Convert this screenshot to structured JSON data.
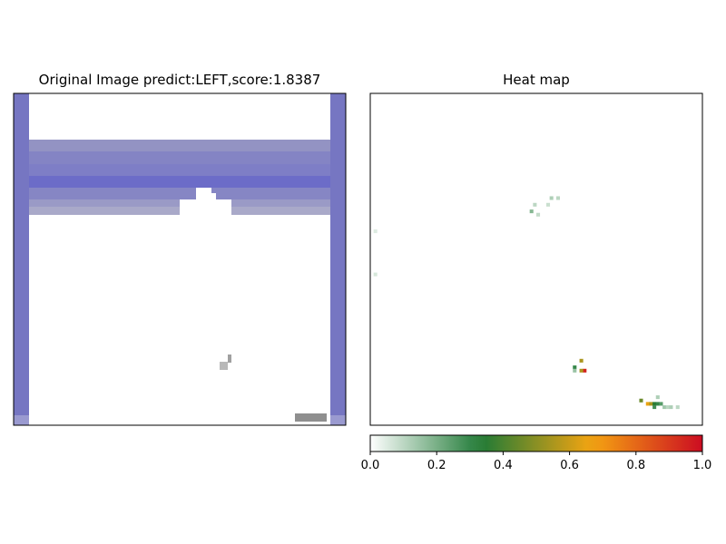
{
  "chart_data": [
    {
      "type": "image",
      "title": "Original Image predict:LEFT,score:1.8387",
      "scene": {
        "game": "Breakout",
        "wall_color": "#7676c2",
        "brick_rows": [
          {
            "color": "#9393c3"
          },
          {
            "color": "#8484c4"
          },
          {
            "color": "#7e7ec6"
          },
          {
            "color": "#6c6cc8"
          },
          {
            "color": "#8686c4"
          },
          {
            "color": "#9a9ac6"
          },
          {
            "color": "#a9a9c9"
          }
        ],
        "ball_color": "#b8b8b8",
        "paddle_color": "#8f8f8f"
      }
    },
    {
      "type": "heatmap",
      "title": "Heat map",
      "colorbar": {
        "min": 0.0,
        "max": 1.0,
        "ticks": [
          0.0,
          0.2,
          0.4,
          0.6,
          0.8,
          1.0
        ],
        "tick_labels": [
          "0.0",
          "0.2",
          "0.4",
          "0.6",
          "0.8",
          "1.0"
        ],
        "colors": [
          "#ffffff",
          "#1f7a36",
          "#f5a511",
          "#cc0c22"
        ]
      },
      "hotspots": [
        {
          "x": 54,
          "y": 31,
          "v": 0.12
        },
        {
          "x": 56,
          "y": 31,
          "v": 0.1
        },
        {
          "x": 53,
          "y": 33,
          "v": 0.08
        },
        {
          "x": 49,
          "y": 33,
          "v": 0.1
        },
        {
          "x": 48,
          "y": 35,
          "v": 0.18
        },
        {
          "x": 50,
          "y": 36,
          "v": 0.09
        },
        {
          "x": 1,
          "y": 41,
          "v": 0.05
        },
        {
          "x": 1,
          "y": 54,
          "v": 0.06
        },
        {
          "x": 63,
          "y": 80,
          "v": 0.55
        },
        {
          "x": 61,
          "y": 82,
          "v": 0.3
        },
        {
          "x": 61,
          "y": 83,
          "v": 0.15
        },
        {
          "x": 64,
          "y": 83,
          "v": 0.95
        },
        {
          "x": 63,
          "y": 83,
          "v": 0.55
        },
        {
          "x": 86,
          "y": 91,
          "v": 0.12
        },
        {
          "x": 81,
          "y": 92,
          "v": 0.45
        },
        {
          "x": 83,
          "y": 93,
          "v": 0.65
        },
        {
          "x": 84,
          "y": 93,
          "v": 0.55
        },
        {
          "x": 85,
          "y": 93,
          "v": 0.35
        },
        {
          "x": 86,
          "y": 93,
          "v": 0.3
        },
        {
          "x": 87,
          "y": 93,
          "v": 0.25
        },
        {
          "x": 85,
          "y": 94,
          "v": 0.28
        },
        {
          "x": 88,
          "y": 94,
          "v": 0.14
        },
        {
          "x": 89,
          "y": 94,
          "v": 0.1
        },
        {
          "x": 90,
          "y": 94,
          "v": 0.12
        },
        {
          "x": 92,
          "y": 94,
          "v": 0.1
        }
      ]
    }
  ]
}
